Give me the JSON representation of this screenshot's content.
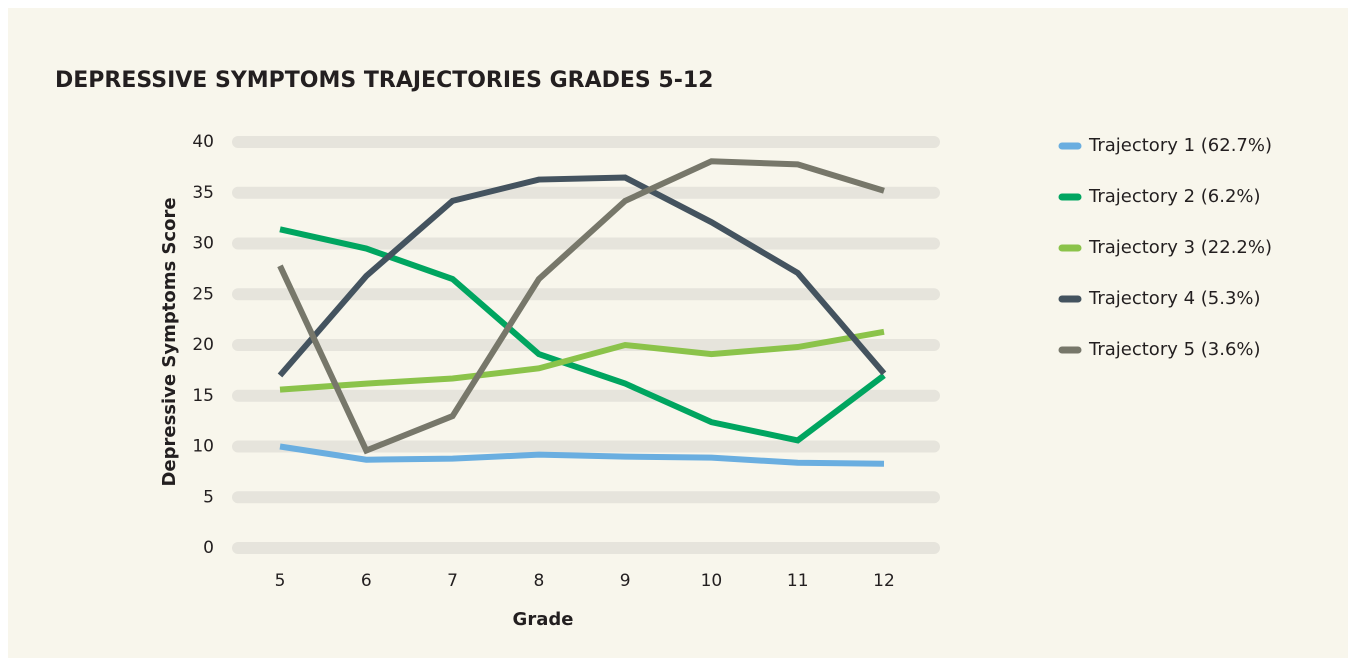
{
  "chart_data": {
    "type": "line",
    "title": "DEPRESSIVE SYMPTOMS TRAJECTORIES GRADES 5-12",
    "x_label": "Grade",
    "y_label": "Depressive Symptoms Score",
    "categories": [
      "5",
      "6",
      "7",
      "8",
      "9",
      "10",
      "11",
      "12"
    ],
    "series": [
      {
        "name": "Trajectory 1 (62.7%)",
        "color": "#6aaee0",
        "values": [
          10.0,
          8.7,
          8.8,
          9.2,
          9.0,
          8.9,
          8.4,
          8.3
        ]
      },
      {
        "name": "Trajectory 2 (6.2%)",
        "color": "#00a560",
        "values": [
          31.4,
          29.5,
          26.5,
          19.1,
          16.2,
          12.4,
          10.6,
          17.0
        ]
      },
      {
        "name": "Trajectory 3 (22.2%)",
        "color": "#8bc34a",
        "values": [
          15.6,
          16.2,
          16.7,
          17.7,
          20.0,
          19.1,
          19.8,
          21.3
        ]
      },
      {
        "name": "Trajectory 4 (5.3%)",
        "color": "#44535f",
        "values": [
          17.0,
          26.8,
          34.2,
          36.3,
          36.5,
          32.1,
          27.1,
          17.2
        ]
      },
      {
        "name": "Trajectory 5 (3.6%)",
        "color": "#77776a",
        "values": [
          27.8,
          9.6,
          13.0,
          26.5,
          34.2,
          38.1,
          37.8,
          35.2
        ]
      }
    ],
    "ylim": [
      0,
      40
    ],
    "yticks": [
      0,
      5,
      10,
      15,
      20,
      25,
      30,
      35,
      40
    ],
    "grid": true,
    "legend": "right"
  }
}
